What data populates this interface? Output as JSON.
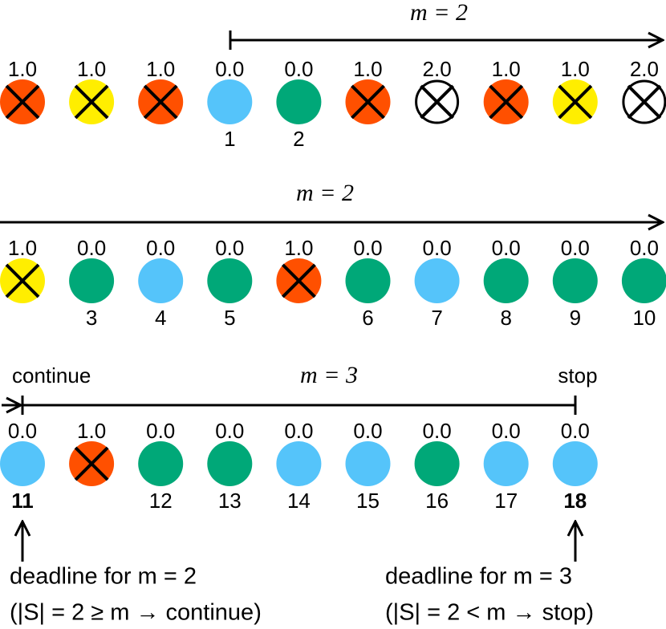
{
  "rows": [
    {
      "bracket": "m = 2",
      "nodes": [
        {
          "score": "1.0",
          "color": "#ff5000",
          "crossed": true,
          "label": null
        },
        {
          "score": "1.0",
          "color": "#ffee00",
          "crossed": true,
          "label": null
        },
        {
          "score": "1.0",
          "color": "#ff5000",
          "crossed": true,
          "label": null
        },
        {
          "score": "0.0",
          "color": "#55c4fa",
          "crossed": false,
          "label": "1"
        },
        {
          "score": "0.0",
          "color": "#00a878",
          "crossed": false,
          "label": "2"
        },
        {
          "score": "1.0",
          "color": "#ff5000",
          "crossed": true,
          "label": null
        },
        {
          "score": "2.0",
          "color": "#ffffff",
          "crossed": true,
          "label": null
        },
        {
          "score": "1.0",
          "color": "#ff5000",
          "crossed": true,
          "label": null
        },
        {
          "score": "1.0",
          "color": "#ffee00",
          "crossed": true,
          "label": null
        },
        {
          "score": "2.0",
          "color": "#ffffff",
          "crossed": true,
          "label": null
        }
      ]
    },
    {
      "bracket": "m = 2",
      "nodes": [
        {
          "score": "1.0",
          "color": "#ffee00",
          "crossed": true,
          "label": null
        },
        {
          "score": "0.0",
          "color": "#00a878",
          "crossed": false,
          "label": "3"
        },
        {
          "score": "0.0",
          "color": "#55c4fa",
          "crossed": false,
          "label": "4"
        },
        {
          "score": "0.0",
          "color": "#00a878",
          "crossed": false,
          "label": "5"
        },
        {
          "score": "1.0",
          "color": "#ff5000",
          "crossed": true,
          "label": null
        },
        {
          "score": "0.0",
          "color": "#00a878",
          "crossed": false,
          "label": "6"
        },
        {
          "score": "0.0",
          "color": "#55c4fa",
          "crossed": false,
          "label": "7"
        },
        {
          "score": "0.0",
          "color": "#00a878",
          "crossed": false,
          "label": "8"
        },
        {
          "score": "0.0",
          "color": "#00a878",
          "crossed": false,
          "label": "9"
        },
        {
          "score": "0.0",
          "color": "#00a878",
          "crossed": false,
          "label": "10"
        }
      ]
    },
    {
      "bracket": "m = 3",
      "start": "continue",
      "end": "stop",
      "nodes": [
        {
          "score": "0.0",
          "color": "#55c4fa",
          "crossed": false,
          "label": "11",
          "bold": true
        },
        {
          "score": "1.0",
          "color": "#ff5000",
          "crossed": true,
          "label": null
        },
        {
          "score": "0.0",
          "color": "#00a878",
          "crossed": false,
          "label": "12"
        },
        {
          "score": "0.0",
          "color": "#00a878",
          "crossed": false,
          "label": "13"
        },
        {
          "score": "0.0",
          "color": "#55c4fa",
          "crossed": false,
          "label": "14"
        },
        {
          "score": "0.0",
          "color": "#55c4fa",
          "crossed": false,
          "label": "15"
        },
        {
          "score": "0.0",
          "color": "#00a878",
          "crossed": false,
          "label": "16"
        },
        {
          "score": "0.0",
          "color": "#55c4fa",
          "crossed": false,
          "label": "17"
        },
        {
          "score": "0.0",
          "color": "#55c4fa",
          "crossed": false,
          "label": "18",
          "bold": true
        }
      ]
    }
  ],
  "deadlines": [
    {
      "title": "deadline for m = 2",
      "condition": "(|S| = 2 ≥ m → continue)"
    },
    {
      "title": "deadline for m = 3",
      "condition": "(|S| = 2 < m → stop)"
    }
  ]
}
